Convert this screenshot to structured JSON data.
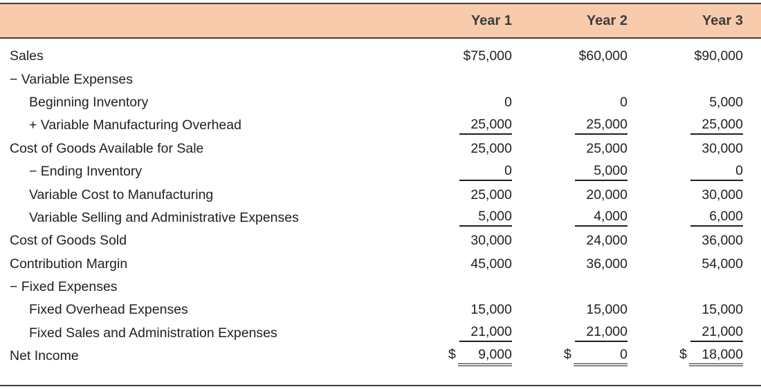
{
  "colors": {
    "header_bg": "#f8cbad",
    "rule": "#473a30",
    "text": "#1f1f1f"
  },
  "table": {
    "columns": [
      "Year 1",
      "Year 2",
      "Year 3"
    ],
    "rows": [
      {
        "label": "Sales",
        "indent": 0,
        "underline": "none",
        "values": [
          "$75,000",
          "$60,000",
          "$90,000"
        ]
      },
      {
        "label": "− Variable Expenses",
        "indent": 0,
        "underline": "none",
        "values": [
          "",
          "",
          ""
        ]
      },
      {
        "label": "Beginning Inventory",
        "indent": 1,
        "underline": "none",
        "values": [
          "0",
          "0",
          "5,000"
        ]
      },
      {
        "label": "+ Variable Manufacturing Overhead",
        "indent": 1,
        "underline": "single",
        "values": [
          "25,000",
          "25,000",
          "25,000"
        ]
      },
      {
        "label": "Cost of Goods Available for Sale",
        "indent": 0,
        "underline": "none",
        "values": [
          "25,000",
          "25,000",
          "30,000"
        ]
      },
      {
        "label": "− Ending Inventory",
        "indent": 1,
        "underline": "single",
        "values": [
          "0",
          "5,000",
          "0"
        ]
      },
      {
        "label": "Variable Cost to Manufacturing",
        "indent": 1,
        "underline": "none",
        "values": [
          "25,000",
          "20,000",
          "30,000"
        ]
      },
      {
        "label": "Variable Selling and Administrative Expenses",
        "indent": 1,
        "underline": "single",
        "values": [
          "5,000",
          "4,000",
          "6,000"
        ]
      },
      {
        "label": "Cost of Goods Sold",
        "indent": 0,
        "underline": "none",
        "values": [
          "30,000",
          "24,000",
          "36,000"
        ]
      },
      {
        "label": "Contribution Margin",
        "indent": 0,
        "underline": "none",
        "values": [
          "45,000",
          "36,000",
          "54,000"
        ]
      },
      {
        "label": "− Fixed Expenses",
        "indent": 0,
        "underline": "none",
        "values": [
          "",
          "",
          ""
        ]
      },
      {
        "label": "Fixed Overhead Expenses",
        "indent": 1,
        "underline": "none",
        "values": [
          "15,000",
          "15,000",
          "15,000"
        ]
      },
      {
        "label": "Fixed Sales and Administration Expenses",
        "indent": 1,
        "underline": "single",
        "values": [
          "21,000",
          "21,000",
          "21,000"
        ]
      },
      {
        "label": "Net Income",
        "indent": 0,
        "underline": "double",
        "values": [
          {
            "cur": "$",
            "amt": "9,000"
          },
          {
            "cur": "$",
            "amt": "0"
          },
          {
            "cur": "$",
            "amt": "18,000"
          }
        ]
      }
    ]
  }
}
